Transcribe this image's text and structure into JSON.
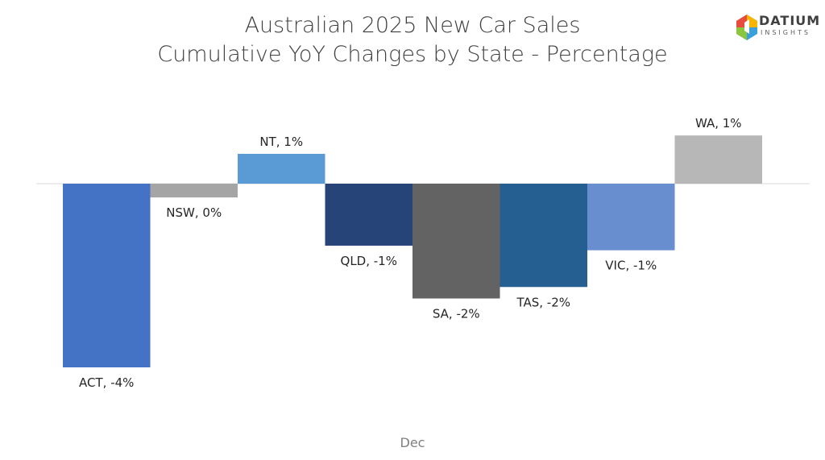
{
  "chart_data": {
    "type": "bar",
    "title": "Australian 2025 New Car Sales",
    "subtitle": "Cumulative YoY Changes by State - Percentage",
    "xlabel": "Dec",
    "ylabel": "",
    "categories": [
      "ACT",
      "NSW",
      "NT",
      "QLD",
      "SA",
      "TAS",
      "VIC",
      "WA"
    ],
    "values": [
      -4.0,
      -0.3,
      0.65,
      -1.35,
      -2.5,
      -2.25,
      -1.45,
      1.05
    ],
    "data_labels": [
      "ACT, -4%",
      "NSW, 0%",
      "NT, 1%",
      "QLD, -1%",
      "SA, -2%",
      "TAS, -2%",
      "VIC, -1%",
      "WA, 1%"
    ],
    "colors": [
      "#4472C4",
      "#A5A5A5",
      "#5B9BD5",
      "#264478",
      "#636363",
      "#255E91",
      "#698ED0",
      "#B7B7B7"
    ],
    "ylim": [
      -4.0,
      1.05
    ],
    "grid": false,
    "legend": "none"
  },
  "logo": {
    "name": "DATIUM",
    "sub": "INSIGHTS"
  }
}
